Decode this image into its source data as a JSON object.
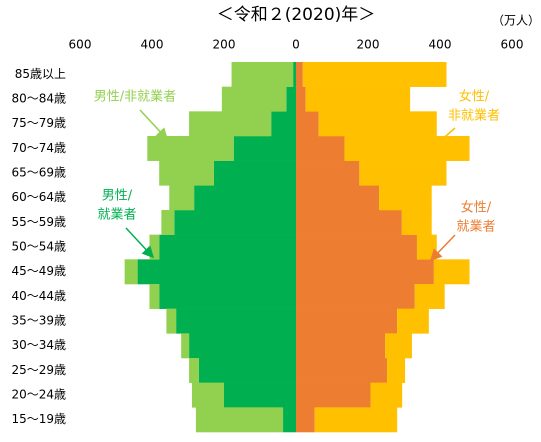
{
  "chart_data": {
    "type": "pyramid",
    "title": "＜令和２(2020)年＞",
    "unit": "（万人）",
    "categories": [
      "85歳以上",
      "80～84歳",
      "75～79歳",
      "70～74歳",
      "65～69歳",
      "60～64歳",
      "55～59歳",
      "50～54歳",
      "45～49歳",
      "40～44歳",
      "35～39歳",
      "30～34歳",
      "25～29歳",
      "20～24歳",
      "15～19歳"
    ],
    "xlim": [
      -600,
      600
    ],
    "xticks": [
      {
        "value": -600,
        "label": "600"
      },
      {
        "value": -400,
        "label": "400"
      },
      {
        "value": -200,
        "label": "200"
      },
      0,
      200,
      400,
      600
    ],
    "series": [
      {
        "side": "left",
        "color": "#00b050",
        "values": [
          8,
          27,
          69,
          173,
          228,
          283,
          338,
          380,
          440,
          380,
          333,
          297,
          270,
          200,
          36
        ]
      },
      {
        "side": "left",
        "color": "#92d050",
        "values": [
          171,
          179,
          228,
          240,
          152,
          69,
          36,
          27,
          36,
          27,
          27,
          22,
          27,
          89,
          242
        ]
      },
      {
        "side": "right",
        "color": "#ed7d31",
        "values": [
          19,
          27,
          63,
          135,
          176,
          231,
          294,
          336,
          383,
          330,
          281,
          248,
          253,
          207,
          52
        ]
      },
      {
        "side": "right",
        "color": "#ffc000",
        "values": [
          399,
          290,
          328,
          347,
          242,
          146,
          83,
          55,
          99,
          83,
          88,
          74,
          50,
          88,
          229
        ]
      }
    ],
    "annotations": [
      {
        "lines": [
          "男性/非就業者"
        ],
        "color": "#92d050"
      },
      {
        "lines": [
          "男性/",
          "就業者"
        ],
        "color": "#00b050"
      },
      {
        "lines": [
          "女性/",
          "非就業者"
        ],
        "color": "#ffc000"
      },
      {
        "lines": [
          "女性/",
          "就業者"
        ],
        "color": "#ed7d31"
      }
    ]
  }
}
